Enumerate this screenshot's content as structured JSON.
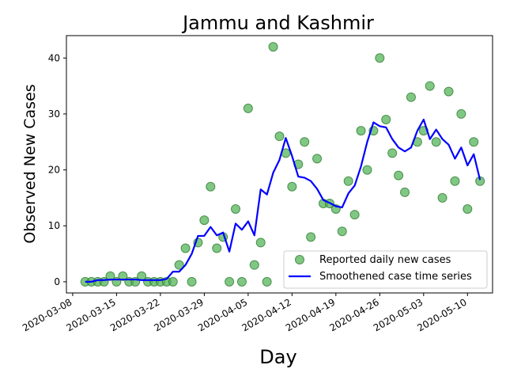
{
  "chart_data": {
    "type": "scatter",
    "title": "Jammu and Kashmir",
    "xlabel": "Day",
    "ylabel": "Observed New Cases",
    "xlim": [
      "2020-03-07",
      "2020-05-14"
    ],
    "ylim": [
      -2,
      44
    ],
    "xticks": [
      "2020-03-08",
      "2020-03-15",
      "2020-03-22",
      "2020-03-29",
      "2020-04-05",
      "2020-04-12",
      "2020-04-19",
      "2020-04-26",
      "2020-05-03",
      "2020-05-10"
    ],
    "yticks": [
      0,
      10,
      20,
      30,
      40
    ],
    "grid": false,
    "legend_position": "lower right",
    "series": [
      {
        "name": "Reported daily new cases",
        "kind": "scatter",
        "color": "#4caf50",
        "points": [
          [
            "2020-03-10",
            0
          ],
          [
            "2020-03-11",
            0
          ],
          [
            "2020-03-12",
            0
          ],
          [
            "2020-03-13",
            0
          ],
          [
            "2020-03-14",
            1
          ],
          [
            "2020-03-15",
            0
          ],
          [
            "2020-03-16",
            1
          ],
          [
            "2020-03-17",
            0
          ],
          [
            "2020-03-18",
            0
          ],
          [
            "2020-03-19",
            1
          ],
          [
            "2020-03-20",
            0
          ],
          [
            "2020-03-21",
            0
          ],
          [
            "2020-03-22",
            0
          ],
          [
            "2020-03-23",
            0
          ],
          [
            "2020-03-24",
            0
          ],
          [
            "2020-03-25",
            3
          ],
          [
            "2020-03-26",
            6
          ],
          [
            "2020-03-27",
            0
          ],
          [
            "2020-03-28",
            7
          ],
          [
            "2020-03-29",
            11
          ],
          [
            "2020-03-30",
            17
          ],
          [
            "2020-03-31",
            6
          ],
          [
            "2020-04-01",
            8
          ],
          [
            "2020-04-02",
            0
          ],
          [
            "2020-04-03",
            13
          ],
          [
            "2020-04-04",
            0
          ],
          [
            "2020-04-05",
            31
          ],
          [
            "2020-04-06",
            3
          ],
          [
            "2020-04-07",
            7
          ],
          [
            "2020-04-08",
            0
          ],
          [
            "2020-04-09",
            42
          ],
          [
            "2020-04-10",
            26
          ],
          [
            "2020-04-11",
            23
          ],
          [
            "2020-04-12",
            17
          ],
          [
            "2020-04-13",
            21
          ],
          [
            "2020-04-14",
            25
          ],
          [
            "2020-04-15",
            8
          ],
          [
            "2020-04-16",
            22
          ],
          [
            "2020-04-17",
            14
          ],
          [
            "2020-04-18",
            14
          ],
          [
            "2020-04-19",
            13
          ],
          [
            "2020-04-20",
            9
          ],
          [
            "2020-04-21",
            18
          ],
          [
            "2020-04-22",
            12
          ],
          [
            "2020-04-23",
            27
          ],
          [
            "2020-04-24",
            20
          ],
          [
            "2020-04-25",
            27
          ],
          [
            "2020-04-26",
            40
          ],
          [
            "2020-04-27",
            29
          ],
          [
            "2020-04-28",
            23
          ],
          [
            "2020-04-29",
            19
          ],
          [
            "2020-04-30",
            16
          ],
          [
            "2020-05-01",
            33
          ],
          [
            "2020-05-02",
            25
          ],
          [
            "2020-05-03",
            27
          ],
          [
            "2020-05-04",
            35
          ],
          [
            "2020-05-05",
            25
          ],
          [
            "2020-05-06",
            15
          ],
          [
            "2020-05-07",
            34
          ],
          [
            "2020-05-08",
            18
          ],
          [
            "2020-05-09",
            30
          ],
          [
            "2020-05-10",
            13
          ],
          [
            "2020-05-11",
            25
          ],
          [
            "2020-05-12",
            18
          ]
        ]
      },
      {
        "name": "Smoothened case time series",
        "kind": "line",
        "color": "#0000ff",
        "points": [
          [
            "2020-03-10",
            0
          ],
          [
            "2020-03-11",
            0
          ],
          [
            "2020-03-12",
            0.3
          ],
          [
            "2020-03-13",
            0.3
          ],
          [
            "2020-03-14",
            0.4
          ],
          [
            "2020-03-15",
            0.4
          ],
          [
            "2020-03-16",
            0.4
          ],
          [
            "2020-03-17",
            0.4
          ],
          [
            "2020-03-18",
            0.4
          ],
          [
            "2020-03-19",
            0.3
          ],
          [
            "2020-03-20",
            0.3
          ],
          [
            "2020-03-21",
            0.3
          ],
          [
            "2020-03-22",
            0.3
          ],
          [
            "2020-03-23",
            0.5
          ],
          [
            "2020-03-24",
            1.8
          ],
          [
            "2020-03-25",
            1.8
          ],
          [
            "2020-03-26",
            3.0
          ],
          [
            "2020-03-27",
            5.0
          ],
          [
            "2020-03-28",
            8.2
          ],
          [
            "2020-03-29",
            8.2
          ],
          [
            "2020-03-30",
            9.8
          ],
          [
            "2020-03-31",
            8.3
          ],
          [
            "2020-04-01",
            8.8
          ],
          [
            "2020-04-02",
            5.4
          ],
          [
            "2020-04-03",
            10.4
          ],
          [
            "2020-04-04",
            9.3
          ],
          [
            "2020-04-05",
            10.8
          ],
          [
            "2020-04-06",
            8.3
          ],
          [
            "2020-04-07",
            16.5
          ],
          [
            "2020-04-08",
            15.6
          ],
          [
            "2020-04-09",
            19.5
          ],
          [
            "2020-04-10",
            21.8
          ],
          [
            "2020-04-11",
            25.7
          ],
          [
            "2020-04-12",
            22.5
          ],
          [
            "2020-04-13",
            18.8
          ],
          [
            "2020-04-14",
            18.6
          ],
          [
            "2020-04-15",
            18.0
          ],
          [
            "2020-04-16",
            16.6
          ],
          [
            "2020-04-17",
            14.6
          ],
          [
            "2020-04-18",
            14.1
          ],
          [
            "2020-04-19",
            13.5
          ],
          [
            "2020-04-20",
            13.3
          ],
          [
            "2020-04-21",
            15.8
          ],
          [
            "2020-04-22",
            17.2
          ],
          [
            "2020-04-23",
            20.6
          ],
          [
            "2020-04-24",
            25.0
          ],
          [
            "2020-04-25",
            28.5
          ],
          [
            "2020-04-26",
            27.8
          ],
          [
            "2020-04-27",
            27.6
          ],
          [
            "2020-04-28",
            25.5
          ],
          [
            "2020-04-29",
            24.0
          ],
          [
            "2020-04-30",
            23.3
          ],
          [
            "2020-05-01",
            24.0
          ],
          [
            "2020-05-02",
            27.0
          ],
          [
            "2020-05-03",
            29.0
          ],
          [
            "2020-05-04",
            25.5
          ],
          [
            "2020-05-05",
            27.2
          ],
          [
            "2020-05-06",
            25.5
          ],
          [
            "2020-05-07",
            24.5
          ],
          [
            "2020-05-08",
            22.0
          ],
          [
            "2020-05-09",
            24.0
          ],
          [
            "2020-05-10",
            20.8
          ],
          [
            "2020-05-11",
            22.8
          ],
          [
            "2020-05-12",
            18.2
          ]
        ]
      }
    ]
  }
}
